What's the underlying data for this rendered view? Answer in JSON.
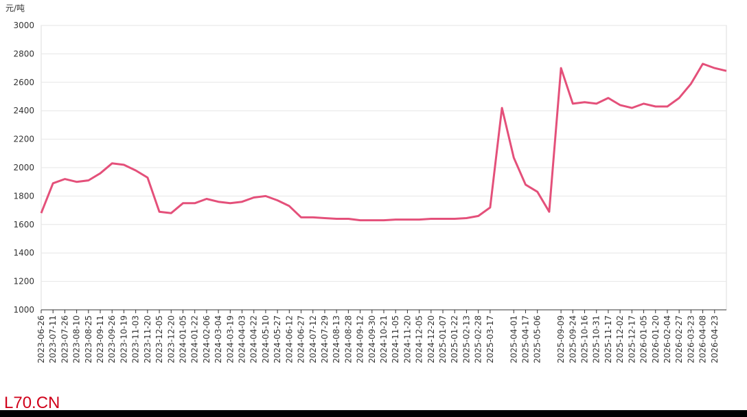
{
  "chart_data": {
    "type": "line",
    "y_label": "元/吨",
    "watermark": "L70.CN",
    "categories": [
      "2023-06-26",
      "2023-07-11",
      "2023-07-26",
      "2023-08-10",
      "2023-08-25",
      "2023-09-11",
      "2023-09-26",
      "2023-10-19",
      "2023-11-03",
      "2023-11-20",
      "2023-12-05",
      "2023-12-20",
      "2024-01-05",
      "2024-01-22",
      "2024-02-06",
      "2024-03-04",
      "2024-03-19",
      "2024-04-03",
      "2024-04-22",
      "2024-05-10",
      "2024-05-27",
      "2024-06-12",
      "2024-06-27",
      "2024-07-12",
      "2024-07-29",
      "2024-08-13",
      "2024-08-28",
      "2024-09-12",
      "2024-09-30",
      "2024-10-21",
      "2024-11-05",
      "2024-11-20",
      "2024-12-05",
      "2024-12-20",
      "2025-01-07",
      "2025-01-22",
      "2025-02-13",
      "2025-02-28",
      "2025-03-17",
      null,
      "2025-04-01",
      "2025-04-17",
      "2025-05-06",
      null,
      "2025-09-09",
      "2025-09-24",
      "2025-10-16",
      "2025-10-31",
      "2025-11-17",
      "2025-12-02",
      "2025-12-17",
      "2026-01-05",
      "2026-01-20",
      "2026-02-04",
      "2026-02-27",
      "2026-03-23",
      "2026-04-08",
      "2026-04-23",
      null
    ],
    "values": [
      1680,
      1890,
      1920,
      1900,
      1910,
      1960,
      2030,
      2020,
      1980,
      1930,
      1690,
      1680,
      1750,
      1750,
      1780,
      1760,
      1750,
      1760,
      1790,
      1800,
      1770,
      1730,
      1650,
      1650,
      1645,
      1640,
      1640,
      1630,
      1630,
      1630,
      1635,
      1635,
      1635,
      1640,
      1640,
      1640,
      1645,
      1660,
      1720,
      2420,
      2070,
      1880,
      1830,
      1690,
      2700,
      2450,
      2460,
      2450,
      2490,
      2440,
      2420,
      2450,
      2430,
      2430,
      2490,
      2590,
      2730,
      2700,
      2680
    ],
    "color": "#e4507a",
    "ylim": [
      1000,
      3000
    ],
    "yticks": [
      1000,
      1200,
      1400,
      1600,
      1800,
      2000,
      2200,
      2400,
      2600,
      2800,
      3000
    ],
    "grid": true
  }
}
